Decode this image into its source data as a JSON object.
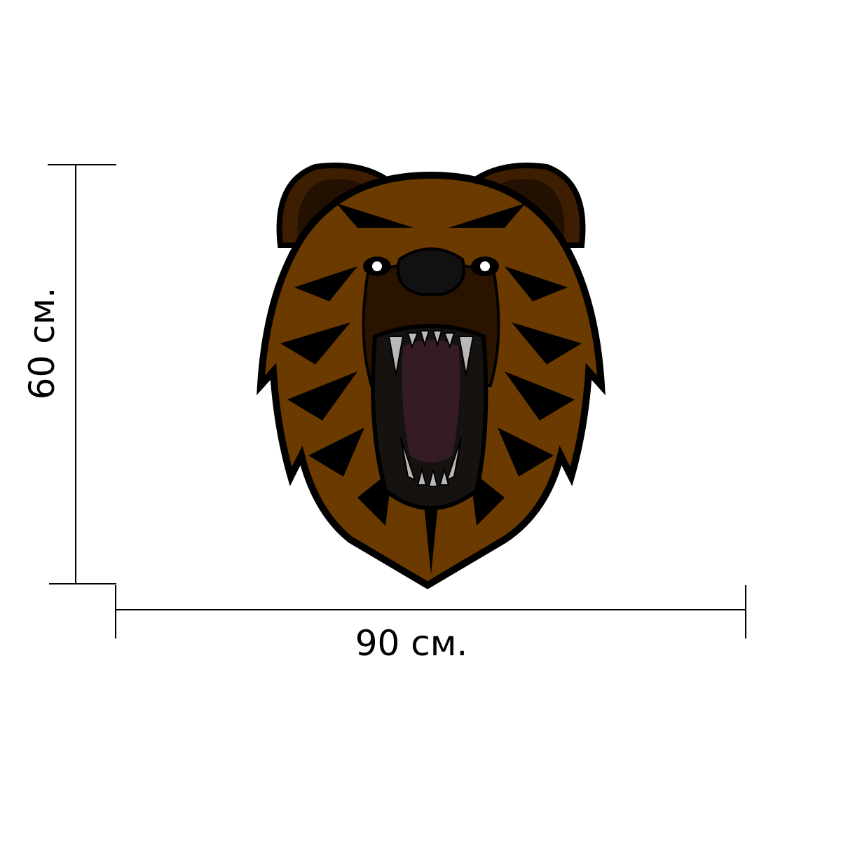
{
  "dimensions": {
    "height_label": "60 см.",
    "width_label": "90 см."
  },
  "artwork": {
    "subject": "roaring-bear-head",
    "colors": {
      "outline": "#000000",
      "fur_light": "#6b3a00",
      "fur_dark": "#3d1e00",
      "muzzle": "#2a1400",
      "mouth": "#161210",
      "tongue": "#351c24",
      "teeth": "#b8b8b8"
    }
  }
}
